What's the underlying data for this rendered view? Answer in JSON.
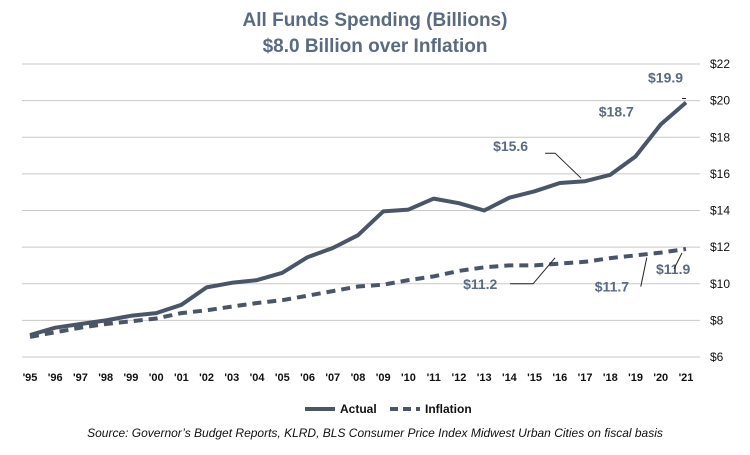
{
  "chart_data": {
    "type": "line",
    "title": "All Funds Spending (Billions)",
    "subtitle": "$8.0 Billion over Inflation",
    "x": [
      "'95",
      "'96",
      "'97",
      "'98",
      "'99",
      "'00",
      "'01",
      "'02",
      "'03",
      "'04",
      "'05",
      "'06",
      "'07",
      "'08",
      "'09",
      "'10",
      "'11",
      "'12",
      "'13",
      "'14",
      "'15",
      "'16",
      "'17",
      "'18",
      "'19",
      "'20",
      "'21"
    ],
    "y_ticks": [
      "$6",
      "$8",
      "$10",
      "$12",
      "$14",
      "$16",
      "$18",
      "$20",
      "$22"
    ],
    "ylim": [
      6,
      22
    ],
    "y_axis_position": "right",
    "grid": "horizontal",
    "legend_position": "bottom",
    "series": [
      {
        "name": "Actual",
        "style": "solid",
        "color": "#4a5568",
        "values": [
          7.2,
          7.6,
          7.8,
          8.0,
          8.25,
          8.4,
          8.85,
          9.8,
          10.05,
          10.2,
          10.6,
          11.45,
          11.95,
          12.65,
          13.95,
          14.05,
          14.65,
          14.4,
          14.0,
          14.7,
          15.05,
          15.5,
          15.6,
          15.95,
          16.95,
          18.7,
          19.9
        ]
      },
      {
        "name": "Inflation",
        "style": "dashed",
        "color": "#4a5568",
        "values": [
          7.1,
          7.35,
          7.6,
          7.8,
          7.95,
          8.1,
          8.4,
          8.55,
          8.75,
          8.95,
          9.1,
          9.35,
          9.6,
          9.85,
          9.95,
          10.2,
          10.4,
          10.7,
          10.9,
          11.0,
          11.0,
          11.1,
          11.2,
          11.4,
          11.55,
          11.7,
          11.9
        ]
      }
    ],
    "annotations": [
      {
        "text": "$19.9",
        "series": 0,
        "index": 26
      },
      {
        "text": "$18.7",
        "series": 0,
        "index": 25
      },
      {
        "text": "$15.6",
        "series": 0,
        "index": 22
      },
      {
        "text": "$11.2",
        "series": 1,
        "index": 22
      },
      {
        "text": "$11.7",
        "series": 1,
        "index": 25
      },
      {
        "text": "$11.9",
        "series": 1,
        "index": 26
      }
    ],
    "source": "Source: Governor’s Budget Reports, KLRD, BLS Consumer Price Index Midwest Urban Cities on fiscal basis"
  }
}
